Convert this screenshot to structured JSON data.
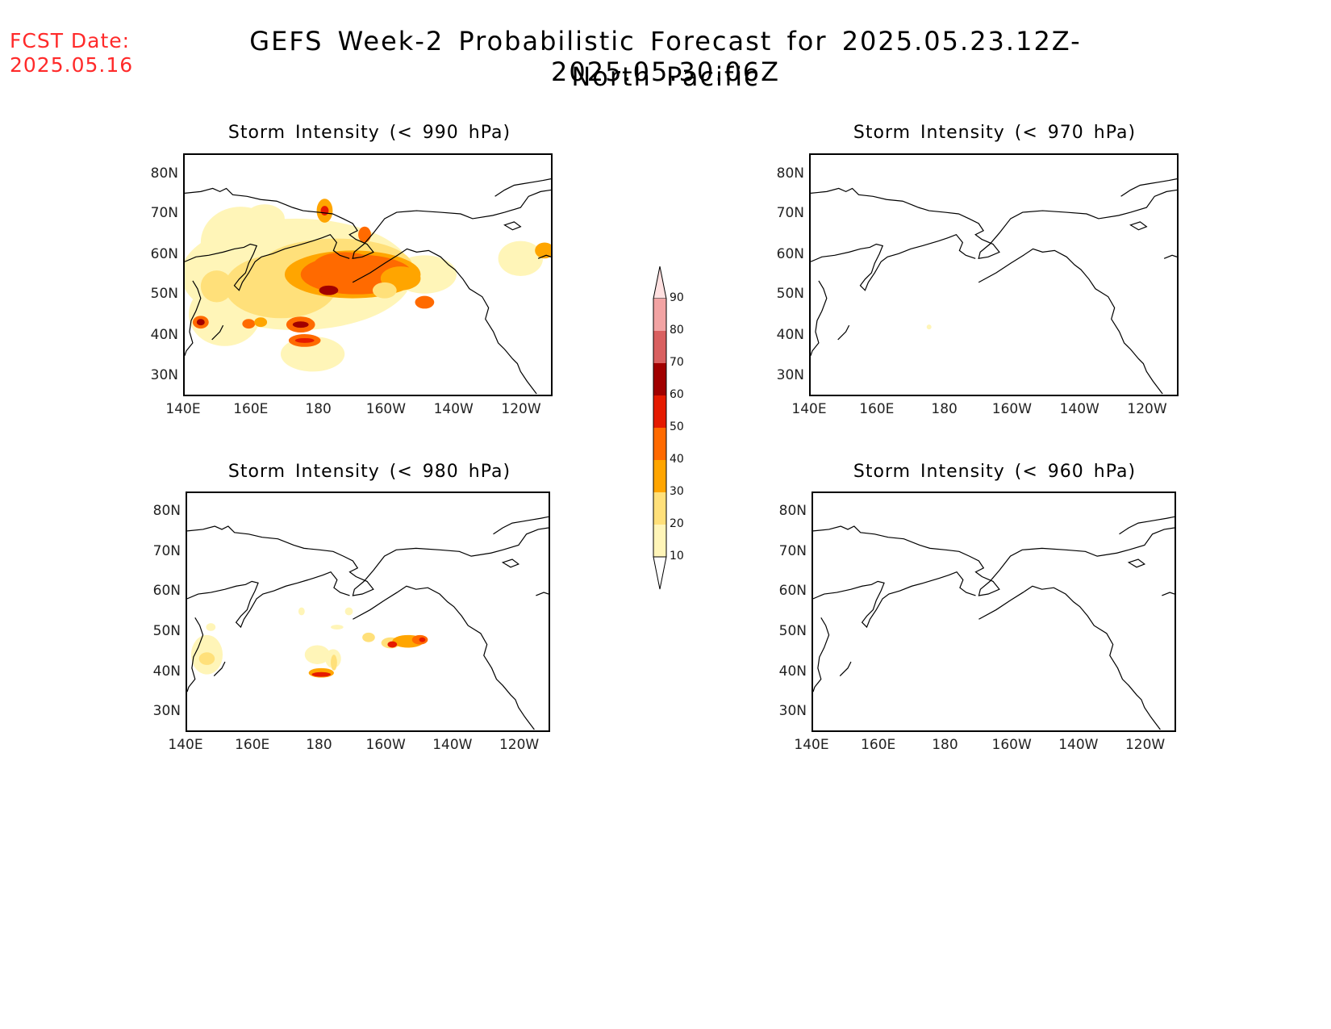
{
  "header": {
    "fcst_label": "FCST Date:",
    "fcst_date": "2025.05.16",
    "title_line1": "GEFS Week-2 Probabilistic Forecast for 2025.05.23.12Z-2025.05.30.06Z",
    "title_line2": "North Pacific"
  },
  "panels": {
    "p990": {
      "title": "Storm Intensity (< 990 hPa)"
    },
    "p970": {
      "title": "Storm Intensity (< 970 hPa)"
    },
    "p980": {
      "title": "Storm Intensity (< 980 hPa)"
    },
    "p960": {
      "title": "Storm Intensity (< 960 hPa)"
    }
  },
  "axes": {
    "lat_labels": [
      "80N",
      "70N",
      "60N",
      "50N",
      "40N",
      "30N"
    ],
    "lon_labels": [
      "140E",
      "160E",
      "180",
      "160W",
      "140W",
      "120W"
    ]
  },
  "colorbar": {
    "levels": [
      "90",
      "80",
      "70",
      "60",
      "50",
      "40",
      "30",
      "20",
      "10"
    ],
    "colors": {
      "10": "#fff5b8",
      "20": "#ffe07a",
      "30": "#ffa500",
      "40": "#ff6a00",
      "50": "#e51a00",
      "60": "#a10000",
      "70": "#d96060",
      "80": "#f2a3a3",
      "90": "#ffe0e0"
    }
  }
}
